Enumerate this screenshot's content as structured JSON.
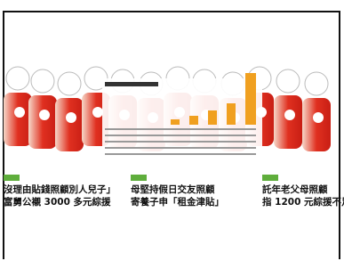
{
  "stories": [
    {
      "lines": [
        "沒理由貼錢照顧別人兒子」",
        "富舅公襯 3000 多元綜援"
      ]
    },
    {
      "lines": [
        "母堅持假日交友照顧",
        "寄養子申「租金津貼」"
      ]
    },
    {
      "lines": [
        "託年老父母照顧",
        "指 1200 元綜援不足"
      ]
    }
  ]
}
